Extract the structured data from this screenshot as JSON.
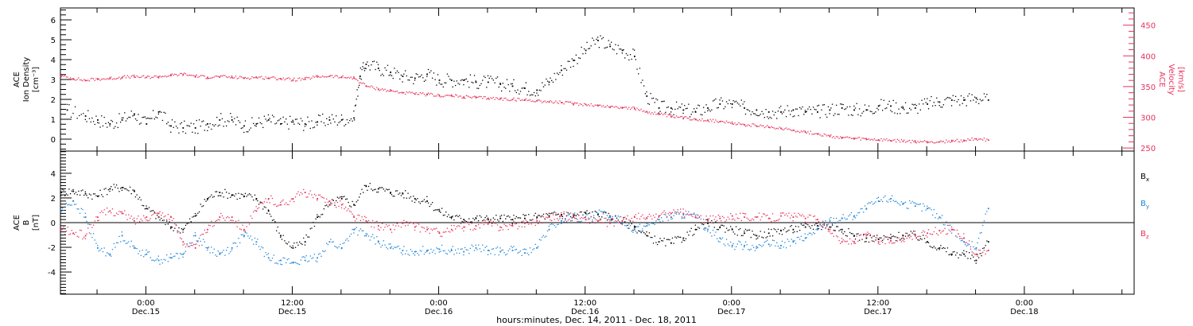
{
  "colors": {
    "black": "#000000",
    "pink": "#e8325a",
    "blue": "#1f84d8"
  },
  "time_axis": {
    "start_hour": -7,
    "end_hour": 81,
    "tick_labels": [
      {
        "hour": 0,
        "time": "0:00",
        "date": "Dec.15"
      },
      {
        "hour": 12,
        "time": "12:00",
        "date": "Dec.15"
      },
      {
        "hour": 24,
        "time": "0:00",
        "date": "Dec.16"
      },
      {
        "hour": 36,
        "time": "12:00",
        "date": "Dec.16"
      },
      {
        "hour": 48,
        "time": "0:00",
        "date": "Dec.17"
      },
      {
        "hour": 60,
        "time": "12:00",
        "date": "Dec.17"
      },
      {
        "hour": 72,
        "time": "0:00",
        "date": "Dec.18"
      }
    ],
    "title": "hours:minutes, Dec. 14, 2011 - Dec. 18, 2011"
  },
  "chart_data": [
    {
      "type": "scatter",
      "name": "top-panel",
      "left_axis": {
        "label_lines": [
          "ACE",
          "Ion Density",
          "[cm⁻³]"
        ],
        "ylim": [
          -0.6,
          6.6
        ],
        "ticks": [
          0,
          1,
          2,
          3,
          4,
          5,
          6
        ]
      },
      "right_axis": {
        "label_lines": [
          "ACE",
          "Velocity",
          "[km/s]"
        ],
        "ylim": [
          245,
          478
        ],
        "ticks": [
          250,
          300,
          350,
          400,
          450
        ]
      },
      "series": [
        {
          "axis": "left",
          "color": "black",
          "x": [
            -6.5,
            -5,
            -4,
            -3,
            -2,
            -1,
            0,
            1,
            2,
            3,
            4,
            5,
            6,
            7,
            8,
            9,
            10,
            11,
            12,
            13,
            14,
            15,
            16,
            17,
            17.5,
            18,
            19,
            20,
            21,
            22,
            23,
            24,
            25,
            26,
            27,
            28,
            29,
            30,
            31,
            32,
            33,
            34,
            35,
            36,
            37,
            38,
            39,
            40,
            41,
            42,
            43,
            44,
            45,
            46,
            47,
            48,
            49,
            50,
            51,
            52,
            53,
            54,
            55,
            56,
            57,
            58,
            59,
            60,
            61,
            62,
            63,
            64,
            65,
            66,
            67,
            68,
            69
          ],
          "y": [
            1.5,
            1.2,
            1.0,
            0.8,
            1.0,
            1.3,
            0.8,
            1.4,
            0.7,
            0.6,
            0.6,
            0.8,
            1.0,
            1.0,
            0.7,
            0.8,
            1.0,
            0.8,
            0.9,
            0.8,
            0.9,
            1.0,
            1.0,
            1.1,
            3.2,
            3.8,
            3.6,
            3.4,
            3.2,
            3.1,
            3.3,
            3.0,
            3.0,
            3.0,
            2.9,
            2.9,
            2.8,
            2.7,
            2.6,
            2.5,
            2.9,
            3.5,
            4.0,
            4.5,
            5.0,
            4.7,
            4.5,
            4.2,
            2.2,
            1.6,
            1.6,
            1.5,
            1.4,
            1.6,
            1.8,
            1.8,
            1.6,
            1.5,
            1.4,
            1.4,
            1.5,
            1.4,
            1.4,
            1.5,
            1.6,
            1.5,
            1.5,
            1.7,
            1.7,
            1.6,
            1.6,
            1.8,
            1.9,
            2.0,
            2.0,
            2.1,
            2.0
          ]
        },
        {
          "axis": "right",
          "color": "pink",
          "x": [
            -7,
            -6,
            -5,
            -4,
            -3,
            -2,
            -1,
            0,
            1,
            2,
            3,
            4,
            5,
            6,
            7,
            8,
            9,
            10,
            11,
            12,
            13,
            14,
            15,
            16,
            17,
            18,
            19,
            20,
            21,
            22,
            23,
            24,
            25,
            26,
            27,
            28,
            29,
            30,
            31,
            32,
            33,
            34,
            35,
            36,
            37,
            38,
            39,
            40,
            41,
            42,
            43,
            44,
            45,
            46,
            47,
            48,
            49,
            50,
            51,
            52,
            53,
            54,
            55,
            56,
            57,
            58,
            59,
            60,
            61,
            62,
            63,
            64,
            65,
            66,
            67,
            68,
            69
          ],
          "y": [
            368,
            364,
            361,
            363,
            364,
            366,
            367,
            366,
            367,
            369,
            371,
            368,
            366,
            367,
            366,
            365,
            366,
            365,
            364,
            362,
            363,
            367,
            368,
            366,
            365,
            352,
            347,
            344,
            341,
            339,
            338,
            336,
            336,
            334,
            333,
            332,
            331,
            330,
            329,
            328,
            326,
            325,
            323,
            322,
            320,
            318,
            317,
            315,
            310,
            306,
            302,
            300,
            298,
            296,
            294,
            291,
            289,
            287,
            285,
            283,
            280,
            277,
            274,
            270,
            268,
            266,
            265,
            264,
            263,
            262,
            261,
            261,
            261,
            262,
            263,
            266,
            264
          ]
        }
      ]
    },
    {
      "type": "scatter",
      "name": "bottom-panel",
      "left_axis": {
        "label_lines": [
          "ACE",
          "B",
          "[nT]"
        ],
        "ylim": [
          -5.8,
          5.8
        ],
        "ticks": [
          -4,
          -2,
          0,
          2,
          4
        ]
      },
      "legend": [
        "Bx",
        "By",
        "Bz"
      ],
      "series": [
        {
          "name": "Bx",
          "color": "black",
          "x": [
            -7,
            -6,
            -5,
            -4,
            -3,
            -2,
            -1,
            0,
            1,
            2,
            3,
            4,
            5,
            6,
            7,
            8,
            9,
            10,
            11,
            12,
            13,
            14,
            15,
            16,
            17,
            18,
            19,
            20,
            21,
            22,
            23,
            24,
            25,
            26,
            27,
            28,
            29,
            30,
            31,
            32,
            33,
            34,
            35,
            36,
            37,
            38,
            39,
            40,
            41,
            42,
            43,
            44,
            45,
            46,
            47,
            48,
            49,
            50,
            51,
            52,
            53,
            54,
            55,
            56,
            57,
            58,
            59,
            60,
            61,
            62,
            63,
            64,
            65,
            66,
            67,
            68,
            69
          ],
          "y": [
            2.5,
            2.6,
            2.4,
            2.2,
            2.8,
            2.9,
            2.6,
            1.2,
            0.5,
            -0.3,
            -0.5,
            0.6,
            2.0,
            2.5,
            2.3,
            2.2,
            2.0,
            1.0,
            -1.0,
            -2.0,
            -1.5,
            0.5,
            1.5,
            2.0,
            1.5,
            3.0,
            2.8,
            2.5,
            2.4,
            2.0,
            1.8,
            1.0,
            0.5,
            0.3,
            0.4,
            0.3,
            0.4,
            0.3,
            0.4,
            0.5,
            0.6,
            0.7,
            0.6,
            0.8,
            0.7,
            0.5,
            0.2,
            -0.3,
            -1.0,
            -1.5,
            -1.6,
            -1.2,
            -0.5,
            0.0,
            -0.3,
            -0.5,
            -0.8,
            -1.0,
            -0.8,
            -0.6,
            -0.5,
            -0.3,
            -0.2,
            -0.3,
            -0.5,
            -1.0,
            -1.2,
            -1.3,
            -1.2,
            -1.0,
            -1.0,
            -1.5,
            -2.0,
            -2.5,
            -2.5,
            -3.0,
            -1.5
          ]
        },
        {
          "name": "By",
          "color": "blue",
          "x": [
            -7,
            -6,
            -5,
            -4,
            -3,
            -2,
            -1,
            0,
            1,
            2,
            3,
            4,
            5,
            6,
            7,
            8,
            9,
            10,
            11,
            12,
            13,
            14,
            15,
            16,
            17,
            18,
            19,
            20,
            21,
            22,
            23,
            24,
            25,
            26,
            27,
            28,
            29,
            30,
            31,
            32,
            33,
            34,
            35,
            36,
            37,
            38,
            39,
            40,
            41,
            42,
            43,
            44,
            45,
            46,
            47,
            48,
            49,
            50,
            51,
            52,
            53,
            54,
            55,
            56,
            57,
            58,
            59,
            60,
            61,
            62,
            63,
            64,
            65,
            66,
            67,
            68,
            69
          ],
          "y": [
            1.0,
            1.8,
            0.5,
            -2.0,
            -2.5,
            -1.0,
            -2.0,
            -2.5,
            -3.0,
            -2.8,
            -2.5,
            -1.0,
            -2.0,
            -2.5,
            -2.0,
            -1.0,
            -1.5,
            -2.8,
            -3.0,
            -3.2,
            -3.0,
            -2.8,
            -1.5,
            -2.0,
            -0.5,
            -1.0,
            -1.5,
            -2.0,
            -2.2,
            -2.3,
            -2.2,
            -2.1,
            -2.2,
            -2.3,
            -2.0,
            -2.2,
            -2.3,
            -2.2,
            -2.4,
            -2.0,
            -0.5,
            0.2,
            0.5,
            0.3,
            0.8,
            0.5,
            0.2,
            -0.5,
            -0.2,
            0.3,
            0.5,
            0.7,
            0.5,
            -0.5,
            -1.2,
            -1.8,
            -1.8,
            -1.9,
            -1.7,
            -1.8,
            -1.5,
            -1.2,
            -0.5,
            0.2,
            0.4,
            0.6,
            1.2,
            1.8,
            2.0,
            1.6,
            1.4,
            1.2,
            0.5,
            -0.5,
            -1.5,
            -2.0,
            1.2
          ]
        },
        {
          "name": "Bz",
          "color": "pink",
          "x": [
            -7,
            -6,
            -5,
            -4,
            -3,
            -2,
            -1,
            0,
            1,
            2,
            3,
            4,
            5,
            6,
            7,
            8,
            9,
            10,
            11,
            12,
            13,
            14,
            15,
            16,
            17,
            18,
            19,
            20,
            21,
            22,
            23,
            24,
            25,
            26,
            27,
            28,
            29,
            30,
            31,
            32,
            33,
            34,
            35,
            36,
            37,
            38,
            39,
            40,
            41,
            42,
            43,
            44,
            45,
            46,
            47,
            48,
            49,
            50,
            51,
            52,
            53,
            54,
            55,
            56,
            57,
            58,
            59,
            60,
            61,
            62,
            63,
            64,
            65,
            66,
            67,
            68,
            69
          ],
          "y": [
            -0.5,
            -0.8,
            -1.0,
            0.5,
            1.0,
            0.8,
            0.2,
            0.5,
            0.8,
            0.5,
            -1.5,
            -2.0,
            -0.5,
            0.5,
            0.5,
            -0.5,
            1.0,
            2.0,
            1.5,
            2.0,
            2.5,
            2.0,
            1.8,
            1.5,
            0.5,
            0.2,
            -0.2,
            -0.5,
            0.0,
            -0.3,
            -0.5,
            -0.8,
            -0.5,
            -0.3,
            -0.2,
            0.0,
            -0.3,
            -0.2,
            0.0,
            0.2,
            0.5,
            0.6,
            0.5,
            0.3,
            0.2,
            0.0,
            0.2,
            0.5,
            0.4,
            0.6,
            0.8,
            0.8,
            0.5,
            0.2,
            0.4,
            0.6,
            0.5,
            0.5,
            0.4,
            0.6,
            0.5,
            0.4,
            0.3,
            -0.5,
            -1.5,
            -1.5,
            -1.0,
            -1.5,
            -1.4,
            -1.2,
            -1.0,
            -0.8,
            -0.6,
            -0.5,
            -1.2,
            -2.5,
            -2.2
          ]
        }
      ]
    }
  ]
}
